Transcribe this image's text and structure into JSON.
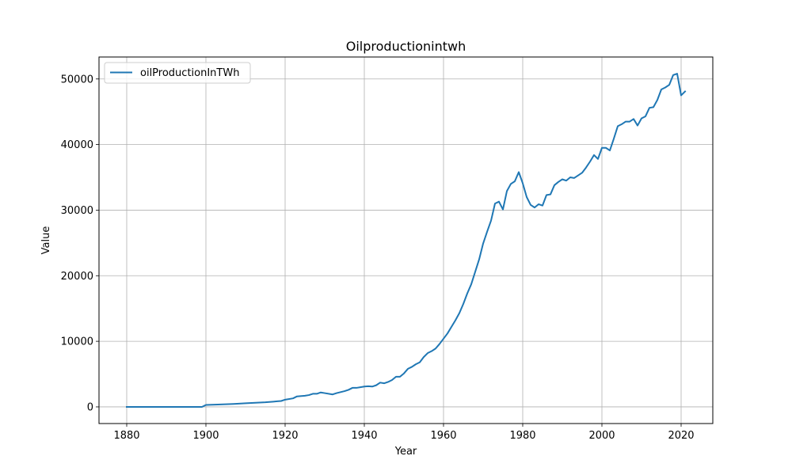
{
  "chart_data": {
    "type": "line",
    "title": "Oilproductionintwh",
    "xlabel": "Year",
    "ylabel": "Value",
    "xlim": [
      1873,
      2028
    ],
    "ylim": [
      -2540,
      53350
    ],
    "xticks": [
      1880,
      1900,
      1920,
      1940,
      1960,
      1980,
      2000,
      2020
    ],
    "yticks": [
      0,
      10000,
      20000,
      30000,
      40000,
      50000
    ],
    "grid": true,
    "legend_position": "top-left",
    "series": [
      {
        "name": "oilProductionInTWh",
        "color": "#1f77b4",
        "x": [
          1880,
          1885,
          1890,
          1895,
          1899,
          1900,
          1903,
          1905,
          1907,
          1910,
          1913,
          1915,
          1917,
          1918,
          1919,
          1920,
          1922,
          1923,
          1925,
          1926,
          1927,
          1928,
          1929,
          1930,
          1932,
          1933,
          1935,
          1936,
          1937,
          1938,
          1939,
          1940,
          1941,
          1942,
          1943,
          1944,
          1945,
          1946,
          1947,
          1948,
          1949,
          1950,
          1951,
          1952,
          1953,
          1954,
          1955,
          1956,
          1957,
          1958,
          1959,
          1960,
          1961,
          1962,
          1963,
          1964,
          1965,
          1966,
          1967,
          1968,
          1969,
          1970,
          1971,
          1972,
          1973,
          1974,
          1975,
          1976,
          1977,
          1978,
          1979,
          1980,
          1981,
          1982,
          1983,
          1984,
          1985,
          1986,
          1987,
          1988,
          1989,
          1990,
          1991,
          1992,
          1993,
          1994,
          1995,
          1996,
          1997,
          1998,
          1999,
          2000,
          2001,
          2002,
          2003,
          2004,
          2005,
          2006,
          2007,
          2008,
          2009,
          2010,
          2011,
          2012,
          2013,
          2014,
          2015,
          2016,
          2017,
          2018,
          2019,
          2020,
          2021
        ],
        "y": [
          0,
          0,
          0,
          0,
          0,
          300,
          350,
          400,
          450,
          550,
          650,
          700,
          800,
          850,
          900,
          1100,
          1300,
          1600,
          1700,
          1800,
          2000,
          2000,
          2200,
          2100,
          1900,
          2100,
          2400,
          2600,
          2900,
          2900,
          3000,
          3100,
          3150,
          3100,
          3300,
          3700,
          3600,
          3800,
          4100,
          4600,
          4600,
          5100,
          5800,
          6100,
          6500,
          6800,
          7600,
          8200,
          8500,
          8900,
          9600,
          10400,
          11200,
          12200,
          13200,
          14300,
          15700,
          17300,
          18700,
          20600,
          22500,
          24900,
          26700,
          28400,
          31000,
          31300,
          30100,
          32900,
          34000,
          34400,
          35800,
          34100,
          32000,
          30800,
          30400,
          30900,
          30700,
          32300,
          32400,
          33800,
          34300,
          34700,
          34500,
          35000,
          34900,
          35300,
          35700,
          36500,
          37400,
          38400,
          37800,
          39500,
          39500,
          39100,
          40900,
          42800,
          43100,
          43500,
          43500,
          43900,
          42900,
          44000,
          44300,
          45600,
          45700,
          46800,
          48400,
          48700,
          49100,
          50600,
          50800,
          47500,
          48100
        ]
      }
    ]
  }
}
